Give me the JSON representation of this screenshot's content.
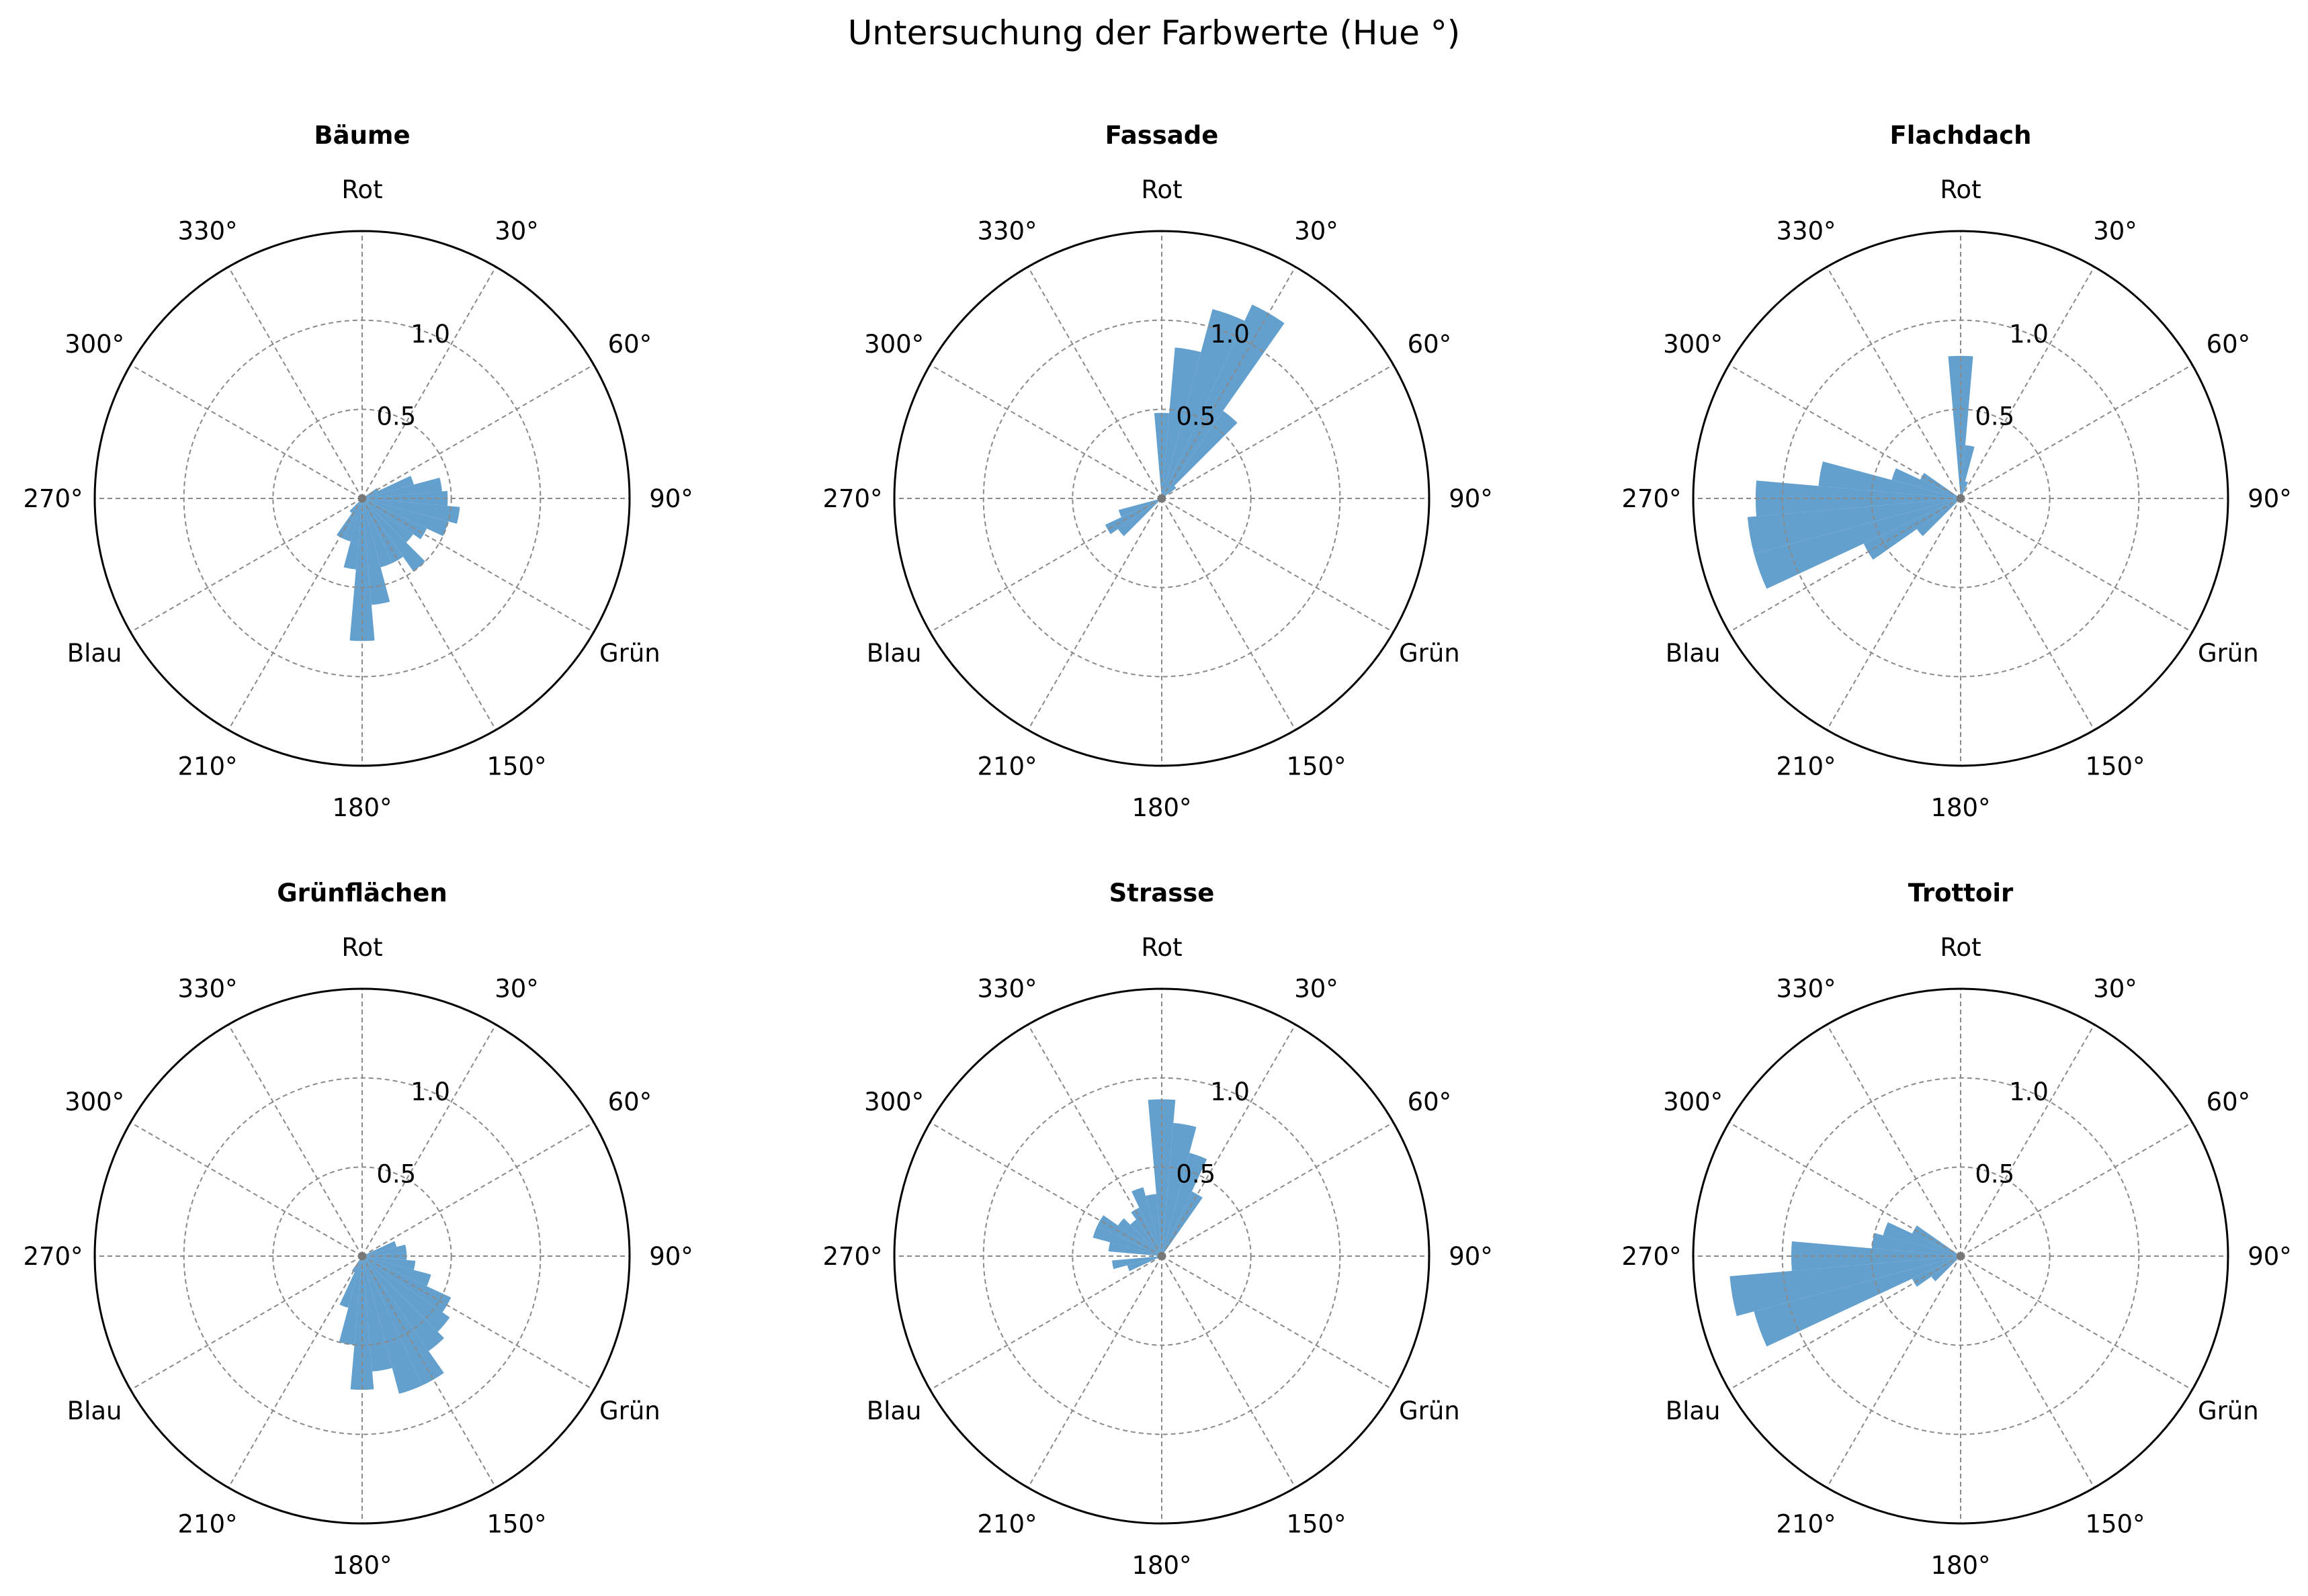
{
  "suptitle": "Untersuchung der Farbwerte (Hue °)",
  "angle_labels": {
    "0": "Rot",
    "30": "30°",
    "60": "60°",
    "90": "90°",
    "120": "Grün",
    "150": "150°",
    "180": "180°",
    "210": "210°",
    "240": "Blau",
    "270": "270°",
    "300": "300°",
    "330": "330°"
  },
  "r_tick_labels": [
    "0.5",
    "1.0"
  ],
  "colors": {
    "bar": "#5b9bcb",
    "grid": "#8a8a8a",
    "frame": "#000000"
  },
  "chart_data": [
    {
      "type": "polar-bar",
      "title": "Bäume",
      "bin_width_deg": 10,
      "rlim": [
        0,
        1.5
      ],
      "grid": true,
      "bins_deg": [
        60,
        70,
        80,
        90,
        100,
        110,
        120,
        130,
        140,
        150,
        160,
        170,
        180,
        190,
        200,
        210,
        220
      ],
      "values": [
        0.1,
        0.3,
        0.45,
        0.48,
        0.55,
        0.5,
        0.4,
        0.35,
        0.5,
        0.4,
        0.4,
        0.6,
        0.8,
        0.4,
        0.25,
        0.25,
        0.1
      ]
    },
    {
      "type": "polar-bar",
      "title": "Fassade",
      "bin_width_deg": 10,
      "rlim": [
        0,
        1.5
      ],
      "grid": true,
      "bins_deg": [
        0,
        10,
        20,
        30,
        40,
        50,
        230,
        240,
        250
      ],
      "values": [
        0.48,
        0.85,
        1.1,
        1.2,
        0.6,
        0.1,
        0.3,
        0.35,
        0.25
      ]
    },
    {
      "type": "polar-bar",
      "title": "Flachdach",
      "bin_width_deg": 10,
      "rlim": [
        0,
        1.5
      ],
      "grid": true,
      "bins_deg": [
        0,
        10,
        20,
        230,
        240,
        250,
        260,
        270,
        280,
        290,
        300
      ],
      "values": [
        0.8,
        0.3,
        0.1,
        0.3,
        0.6,
        1.2,
        1.2,
        1.15,
        0.8,
        0.4,
        0.25
      ]
    },
    {
      "type": "polar-bar",
      "title": "Grünflächen",
      "bin_width_deg": 10,
      "rlim": [
        0,
        1.5
      ],
      "grid": true,
      "bins_deg": [
        70,
        80,
        90,
        100,
        110,
        120,
        130,
        140,
        150,
        160,
        170,
        180,
        190,
        200,
        210
      ],
      "values": [
        0.2,
        0.25,
        0.25,
        0.3,
        0.4,
        0.55,
        0.6,
        0.65,
        0.8,
        0.8,
        0.65,
        0.75,
        0.5,
        0.3,
        0.1
      ]
    },
    {
      "type": "polar-bar",
      "title": "Strasse",
      "bin_width_deg": 10,
      "rlim": [
        0,
        1.5
      ],
      "grid": true,
      "bins_deg": [
        0,
        10,
        20,
        30,
        250,
        260,
        280,
        290,
        300,
        310,
        320,
        330,
        340,
        350
      ],
      "values": [
        0.88,
        0.75,
        0.6,
        0.4,
        0.2,
        0.28,
        0.3,
        0.4,
        0.4,
        0.3,
        0.25,
        0.3,
        0.4,
        0.35
      ]
    },
    {
      "type": "polar-bar",
      "title": "Trottoir",
      "bin_width_deg": 10,
      "rlim": [
        0,
        1.5
      ],
      "grid": true,
      "bins_deg": [
        230,
        240,
        250,
        260,
        270,
        280,
        290,
        300
      ],
      "values": [
        0.2,
        0.3,
        1.2,
        1.3,
        0.95,
        0.5,
        0.45,
        0.3
      ]
    }
  ]
}
